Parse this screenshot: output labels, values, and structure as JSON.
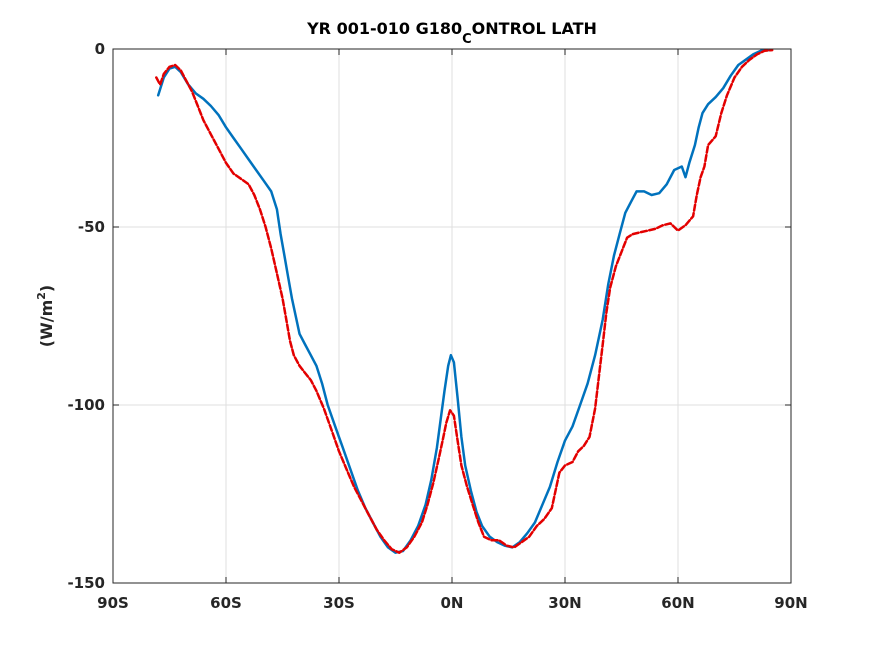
{
  "chart_data": {
    "type": "line",
    "title": {
      "main": "YR 001-010 G180",
      "subscript": "C",
      "rest": "ONTROL LATH"
    },
    "ylabel": {
      "main": "(W/m",
      "superscript": "2",
      "close": ")"
    },
    "xlabel": "",
    "xlim": [
      -90,
      90
    ],
    "ylim": [
      -150,
      0
    ],
    "grid": true,
    "x_ticks": [
      {
        "value": -90,
        "label": "90S"
      },
      {
        "value": -60,
        "label": "60S"
      },
      {
        "value": -30,
        "label": "30S"
      },
      {
        "value": 0,
        "label": "0N"
      },
      {
        "value": 30,
        "label": "30N"
      },
      {
        "value": 60,
        "label": "60N"
      },
      {
        "value": 90,
        "label": "90N"
      }
    ],
    "y_ticks": [
      {
        "value": 0,
        "label": "0"
      },
      {
        "value": -50,
        "label": "-50"
      },
      {
        "value": -100,
        "label": "-100"
      },
      {
        "value": -150,
        "label": "-150"
      }
    ],
    "series": [
      {
        "color": "#0072bd",
        "style": "solid",
        "points": [
          [
            -78,
            -13
          ],
          [
            -76.5,
            -8
          ],
          [
            -75,
            -5.5
          ],
          [
            -73.5,
            -5
          ],
          [
            -72,
            -6.5
          ],
          [
            -70,
            -10
          ],
          [
            -68,
            -12.5
          ],
          [
            -66,
            -14
          ],
          [
            -64,
            -16
          ],
          [
            -62,
            -18.5
          ],
          [
            -60,
            -22
          ],
          [
            -58,
            -25
          ],
          [
            -56,
            -28
          ],
          [
            -54,
            -31
          ],
          [
            -52,
            -34
          ],
          [
            -50,
            -37
          ],
          [
            -48,
            -40
          ],
          [
            -46.5,
            -45
          ],
          [
            -45.5,
            -52
          ],
          [
            -44.5,
            -58
          ],
          [
            -43.5,
            -64
          ],
          [
            -42.5,
            -70
          ],
          [
            -41.5,
            -75
          ],
          [
            -40.5,
            -80
          ],
          [
            -39,
            -83
          ],
          [
            -37.5,
            -86
          ],
          [
            -36,
            -89
          ],
          [
            -34.5,
            -94
          ],
          [
            -33,
            -100
          ],
          [
            -31,
            -106
          ],
          [
            -29,
            -112
          ],
          [
            -27,
            -118
          ],
          [
            -25,
            -124
          ],
          [
            -23,
            -129
          ],
          [
            -21,
            -133
          ],
          [
            -19,
            -137
          ],
          [
            -17,
            -140
          ],
          [
            -15,
            -141.5
          ],
          [
            -13,
            -141
          ],
          [
            -11,
            -138
          ],
          [
            -9,
            -134
          ],
          [
            -7,
            -128
          ],
          [
            -5.5,
            -121
          ],
          [
            -4,
            -112
          ],
          [
            -3,
            -104
          ],
          [
            -2,
            -96
          ],
          [
            -1,
            -89
          ],
          [
            -0.3,
            -86
          ],
          [
            0.5,
            -88
          ],
          [
            1.5,
            -98
          ],
          [
            2.5,
            -109
          ],
          [
            3.5,
            -117
          ],
          [
            5,
            -124
          ],
          [
            6.5,
            -130
          ],
          [
            8,
            -134
          ],
          [
            10,
            -137
          ],
          [
            12,
            -138.5
          ],
          [
            14,
            -139.5
          ],
          [
            16,
            -140
          ],
          [
            18,
            -138.5
          ],
          [
            20,
            -136
          ],
          [
            22,
            -133
          ],
          [
            24,
            -128
          ],
          [
            26,
            -123
          ],
          [
            28,
            -116
          ],
          [
            30,
            -110
          ],
          [
            32,
            -106
          ],
          [
            34,
            -100
          ],
          [
            36,
            -94
          ],
          [
            38,
            -86
          ],
          [
            40,
            -76
          ],
          [
            41.5,
            -66
          ],
          [
            43,
            -58
          ],
          [
            44.5,
            -52
          ],
          [
            46,
            -46
          ],
          [
            47.5,
            -43
          ],
          [
            49,
            -40
          ],
          [
            51,
            -40
          ],
          [
            53,
            -41
          ],
          [
            55,
            -40.5
          ],
          [
            57,
            -38
          ],
          [
            59,
            -34
          ],
          [
            61,
            -33
          ],
          [
            62,
            -36
          ],
          [
            63,
            -32
          ],
          [
            64.5,
            -27
          ],
          [
            65.5,
            -22
          ],
          [
            66.5,
            -18
          ],
          [
            68,
            -15.5
          ],
          [
            70,
            -13.5
          ],
          [
            72,
            -11
          ],
          [
            74,
            -7.5
          ],
          [
            76,
            -4.5
          ],
          [
            78,
            -3
          ],
          [
            80,
            -1.5
          ],
          [
            82,
            -0.5
          ],
          [
            84,
            -0.3
          ]
        ]
      },
      {
        "color": "#e30000",
        "style": "dashed",
        "points": [
          [
            -78.5,
            -8
          ],
          [
            -77.5,
            -10
          ],
          [
            -76.5,
            -7
          ],
          [
            -75,
            -5
          ],
          [
            -73.5,
            -4.5
          ],
          [
            -72,
            -6
          ],
          [
            -70.5,
            -9
          ],
          [
            -69,
            -12
          ],
          [
            -67.5,
            -16
          ],
          [
            -66,
            -20
          ],
          [
            -64,
            -24
          ],
          [
            -62,
            -28
          ],
          [
            -60,
            -32
          ],
          [
            -58,
            -35
          ],
          [
            -56,
            -36.5
          ],
          [
            -54,
            -38
          ],
          [
            -52.5,
            -41
          ],
          [
            -51,
            -45
          ],
          [
            -49.5,
            -50
          ],
          [
            -48,
            -56
          ],
          [
            -46.5,
            -63
          ],
          [
            -45,
            -70
          ],
          [
            -44,
            -76
          ],
          [
            -43,
            -82
          ],
          [
            -42,
            -86
          ],
          [
            -40.5,
            -89
          ],
          [
            -39,
            -91
          ],
          [
            -37.5,
            -93
          ],
          [
            -36,
            -96
          ],
          [
            -34,
            -101
          ],
          [
            -32,
            -107
          ],
          [
            -30,
            -113
          ],
          [
            -28,
            -118
          ],
          [
            -26,
            -123
          ],
          [
            -24,
            -127
          ],
          [
            -22,
            -131
          ],
          [
            -20,
            -135
          ],
          [
            -18,
            -138
          ],
          [
            -16,
            -140.5
          ],
          [
            -14,
            -141.5
          ],
          [
            -12,
            -140
          ],
          [
            -10,
            -137
          ],
          [
            -8,
            -133
          ],
          [
            -6.5,
            -128
          ],
          [
            -5,
            -122
          ],
          [
            -3.5,
            -115
          ],
          [
            -2.5,
            -110
          ],
          [
            -1.5,
            -105
          ],
          [
            -0.5,
            -101.5
          ],
          [
            0.5,
            -103
          ],
          [
            1.5,
            -110
          ],
          [
            2.5,
            -117
          ],
          [
            4,
            -123
          ],
          [
            5.5,
            -128
          ],
          [
            7,
            -133
          ],
          [
            8.5,
            -137
          ],
          [
            10.5,
            -138
          ],
          [
            12.5,
            -138
          ],
          [
            14.5,
            -139.5
          ],
          [
            16.5,
            -140
          ],
          [
            18.5,
            -138.5
          ],
          [
            20.5,
            -137
          ],
          [
            22.5,
            -134
          ],
          [
            24.5,
            -132
          ],
          [
            26.5,
            -129
          ],
          [
            27.5,
            -124
          ],
          [
            28.5,
            -119
          ],
          [
            30,
            -117
          ],
          [
            32,
            -116
          ],
          [
            33.5,
            -113
          ],
          [
            35,
            -111.5
          ],
          [
            36.5,
            -109
          ],
          [
            38,
            -101
          ],
          [
            39,
            -92
          ],
          [
            40,
            -83
          ],
          [
            41,
            -74
          ],
          [
            42,
            -67
          ],
          [
            43.5,
            -61
          ],
          [
            45,
            -57
          ],
          [
            46.5,
            -53
          ],
          [
            48,
            -52
          ],
          [
            50,
            -51.5
          ],
          [
            52,
            -51
          ],
          [
            54,
            -50.5
          ],
          [
            56,
            -49.5
          ],
          [
            58,
            -49
          ],
          [
            60,
            -51
          ],
          [
            62,
            -49.5
          ],
          [
            64,
            -47
          ],
          [
            65,
            -41
          ],
          [
            66,
            -36
          ],
          [
            67,
            -33
          ],
          [
            68,
            -27
          ],
          [
            70,
            -24.5
          ],
          [
            71.5,
            -18
          ],
          [
            73,
            -13
          ],
          [
            75,
            -8
          ],
          [
            77,
            -5
          ],
          [
            79,
            -3
          ],
          [
            81,
            -1.5
          ],
          [
            83,
            -0.5
          ],
          [
            85,
            -0.3
          ]
        ]
      }
    ]
  }
}
